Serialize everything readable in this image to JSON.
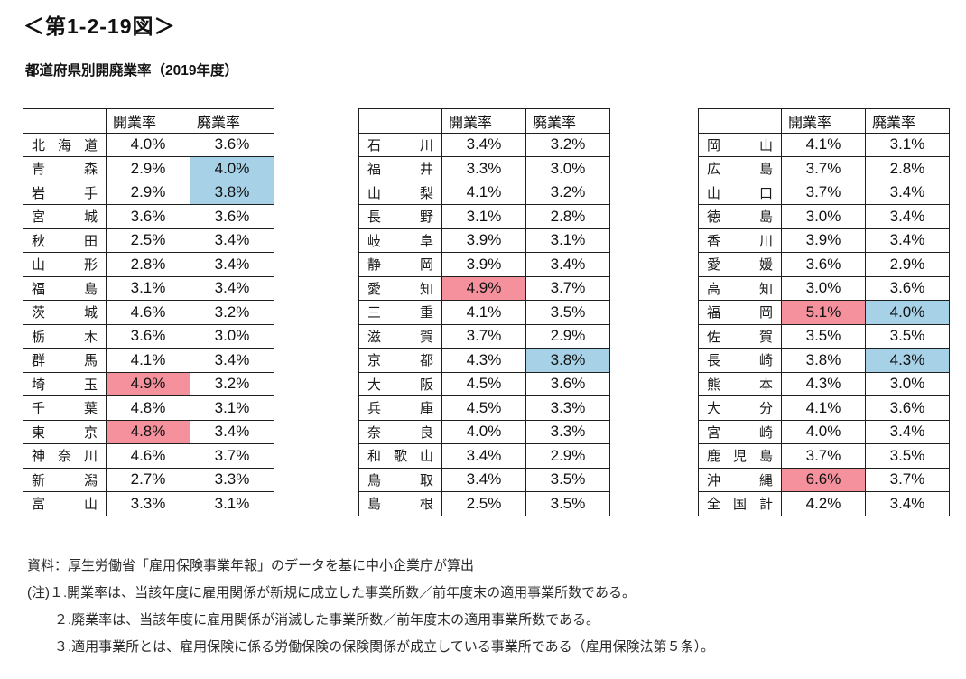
{
  "page": {
    "figure_label": "＜第1-2-19図＞",
    "title": "都道府県別開廃業率（2019年度）"
  },
  "table_headers": {
    "opening": "開業率",
    "closing": "廃業率"
  },
  "colors": {
    "highlight_red": "#f5919d",
    "highlight_blue": "#a6d1e6",
    "border": "#1f1f1f"
  },
  "tables": [
    {
      "rows": [
        {
          "name": "北海道",
          "opening": "4.0%",
          "closing": "3.6%",
          "opening_hl": false,
          "closing_hl": false
        },
        {
          "name": "青森",
          "opening": "2.9%",
          "closing": "4.0%",
          "opening_hl": false,
          "closing_hl": true
        },
        {
          "name": "岩手",
          "opening": "2.9%",
          "closing": "3.8%",
          "opening_hl": false,
          "closing_hl": true
        },
        {
          "name": "宮城",
          "opening": "3.6%",
          "closing": "3.6%",
          "opening_hl": false,
          "closing_hl": false
        },
        {
          "name": "秋田",
          "opening": "2.5%",
          "closing": "3.4%",
          "opening_hl": false,
          "closing_hl": false
        },
        {
          "name": "山形",
          "opening": "2.8%",
          "closing": "3.4%",
          "opening_hl": false,
          "closing_hl": false
        },
        {
          "name": "福島",
          "opening": "3.1%",
          "closing": "3.4%",
          "opening_hl": false,
          "closing_hl": false
        },
        {
          "name": "茨城",
          "opening": "4.6%",
          "closing": "3.2%",
          "opening_hl": false,
          "closing_hl": false
        },
        {
          "name": "栃木",
          "opening": "3.6%",
          "closing": "3.0%",
          "opening_hl": false,
          "closing_hl": false
        },
        {
          "name": "群馬",
          "opening": "4.1%",
          "closing": "3.4%",
          "opening_hl": false,
          "closing_hl": false
        },
        {
          "name": "埼玉",
          "opening": "4.9%",
          "closing": "3.2%",
          "opening_hl": true,
          "closing_hl": false
        },
        {
          "name": "千葉",
          "opening": "4.8%",
          "closing": "3.1%",
          "opening_hl": false,
          "closing_hl": false
        },
        {
          "name": "東京",
          "opening": "4.8%",
          "closing": "3.4%",
          "opening_hl": true,
          "closing_hl": false
        },
        {
          "name": "神奈川",
          "opening": "4.6%",
          "closing": "3.7%",
          "opening_hl": false,
          "closing_hl": false
        },
        {
          "name": "新潟",
          "opening": "2.7%",
          "closing": "3.3%",
          "opening_hl": false,
          "closing_hl": false
        },
        {
          "name": "富山",
          "opening": "3.3%",
          "closing": "3.1%",
          "opening_hl": false,
          "closing_hl": false
        }
      ]
    },
    {
      "rows": [
        {
          "name": "石川",
          "opening": "3.4%",
          "closing": "3.2%",
          "opening_hl": false,
          "closing_hl": false
        },
        {
          "name": "福井",
          "opening": "3.3%",
          "closing": "3.0%",
          "opening_hl": false,
          "closing_hl": false
        },
        {
          "name": "山梨",
          "opening": "4.1%",
          "closing": "3.2%",
          "opening_hl": false,
          "closing_hl": false
        },
        {
          "name": "長野",
          "opening": "3.1%",
          "closing": "2.8%",
          "opening_hl": false,
          "closing_hl": false
        },
        {
          "name": "岐阜",
          "opening": "3.9%",
          "closing": "3.1%",
          "opening_hl": false,
          "closing_hl": false
        },
        {
          "name": "静岡",
          "opening": "3.9%",
          "closing": "3.4%",
          "opening_hl": false,
          "closing_hl": false
        },
        {
          "name": "愛知",
          "opening": "4.9%",
          "closing": "3.7%",
          "opening_hl": true,
          "closing_hl": false
        },
        {
          "name": "三重",
          "opening": "4.1%",
          "closing": "3.5%",
          "opening_hl": false,
          "closing_hl": false
        },
        {
          "name": "滋賀",
          "opening": "3.7%",
          "closing": "2.9%",
          "opening_hl": false,
          "closing_hl": false
        },
        {
          "name": "京都",
          "opening": "4.3%",
          "closing": "3.8%",
          "opening_hl": false,
          "closing_hl": true
        },
        {
          "name": "大阪",
          "opening": "4.5%",
          "closing": "3.6%",
          "opening_hl": false,
          "closing_hl": false
        },
        {
          "name": "兵庫",
          "opening": "4.5%",
          "closing": "3.3%",
          "opening_hl": false,
          "closing_hl": false
        },
        {
          "name": "奈良",
          "opening": "4.0%",
          "closing": "3.3%",
          "opening_hl": false,
          "closing_hl": false
        },
        {
          "name": "和歌山",
          "opening": "3.4%",
          "closing": "2.9%",
          "opening_hl": false,
          "closing_hl": false
        },
        {
          "name": "鳥取",
          "opening": "3.4%",
          "closing": "3.5%",
          "opening_hl": false,
          "closing_hl": false
        },
        {
          "name": "島根",
          "opening": "2.5%",
          "closing": "3.5%",
          "opening_hl": false,
          "closing_hl": false
        }
      ]
    },
    {
      "rows": [
        {
          "name": "岡山",
          "opening": "4.1%",
          "closing": "3.1%",
          "opening_hl": false,
          "closing_hl": false
        },
        {
          "name": "広島",
          "opening": "3.7%",
          "closing": "2.8%",
          "opening_hl": false,
          "closing_hl": false
        },
        {
          "name": "山口",
          "opening": "3.7%",
          "closing": "3.4%",
          "opening_hl": false,
          "closing_hl": false
        },
        {
          "name": "徳島",
          "opening": "3.0%",
          "closing": "3.4%",
          "opening_hl": false,
          "closing_hl": false
        },
        {
          "name": "香川",
          "opening": "3.9%",
          "closing": "3.4%",
          "opening_hl": false,
          "closing_hl": false
        },
        {
          "name": "愛媛",
          "opening": "3.6%",
          "closing": "2.9%",
          "opening_hl": false,
          "closing_hl": false
        },
        {
          "name": "高知",
          "opening": "3.0%",
          "closing": "3.6%",
          "opening_hl": false,
          "closing_hl": false
        },
        {
          "name": "福岡",
          "opening": "5.1%",
          "closing": "4.0%",
          "opening_hl": true,
          "closing_hl": true
        },
        {
          "name": "佐賀",
          "opening": "3.5%",
          "closing": "3.5%",
          "opening_hl": false,
          "closing_hl": false
        },
        {
          "name": "長崎",
          "opening": "3.8%",
          "closing": "4.3%",
          "opening_hl": false,
          "closing_hl": true
        },
        {
          "name": "熊本",
          "opening": "4.3%",
          "closing": "3.0%",
          "opening_hl": false,
          "closing_hl": false
        },
        {
          "name": "大分",
          "opening": "4.1%",
          "closing": "3.6%",
          "opening_hl": false,
          "closing_hl": false
        },
        {
          "name": "宮崎",
          "opening": "4.0%",
          "closing": "3.4%",
          "opening_hl": false,
          "closing_hl": false
        },
        {
          "name": "鹿児島",
          "opening": "3.7%",
          "closing": "3.5%",
          "opening_hl": false,
          "closing_hl": false
        },
        {
          "name": "沖縄",
          "opening": "6.6%",
          "closing": "3.7%",
          "opening_hl": true,
          "closing_hl": false
        },
        {
          "name": "全国計",
          "opening": "4.2%",
          "closing": "3.4%",
          "opening_hl": false,
          "closing_hl": false
        }
      ]
    }
  ],
  "notes": [
    "資料：厚生労働省「雇用保険事業年報」のデータを基に中小企業庁が算出",
    "(注)１.開業率は、当該年度に雇用関係が新規に成立した事業所数／前年度末の適用事業所数である。",
    "２.廃業率は、当該年度に雇用関係が消滅した事業所数／前年度末の適用事業所数である。",
    "３.適用事業所とは、雇用保険に係る労働保険の保険関係が成立している事業所である（雇用保険法第５条）。"
  ]
}
